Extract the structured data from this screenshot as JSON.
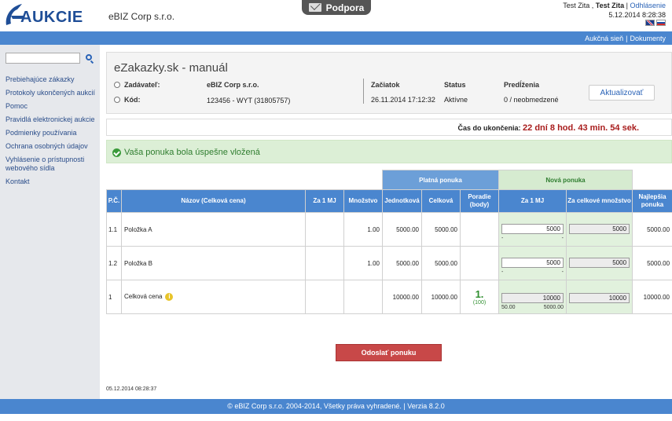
{
  "header": {
    "logo_text": "AUKCIE",
    "company": "eBIZ Corp s.r.o.",
    "support_label": "Podpora",
    "user_first": "Test Zita",
    "user_comma": " , ",
    "user_second": "Test Zita",
    "logout": "Odhlásenie",
    "datetime": "5.12.2014 8:28:38"
  },
  "topbar": {
    "link1": "Aukčná sieň",
    "sep": "|",
    "link2": "Dokumenty"
  },
  "sidebar": {
    "search_placeholder": "",
    "items": [
      "Prebiehajúce zákazky",
      "Protokoly ukončených aukcií",
      "Pomoc",
      "Pravidlá elektronickej aukcie",
      "Podmienky používania",
      "Ochrana osobných údajov",
      "Vyhlásenie o prístupnosti webového sídla",
      "Kontakt"
    ]
  },
  "panel": {
    "title": "eZakazky.sk - manuál",
    "zadavatel_label": "Zadávateľ:",
    "zadavatel_value": "eBIZ Corp s.r.o.",
    "kod_label": "Kód:",
    "kod_value": "123456 - WYT  (31805757)",
    "zaciatok_label": "Začiatok",
    "zaciatok_value": "26.11.2014 17:12:32",
    "status_label": "Status",
    "status_value": "Aktívne",
    "predlzenia_label": "Predĺženia",
    "predlzenia_value": "0 / neobmedzené",
    "refresh_label": "Aktualizovať"
  },
  "time": {
    "label": "Čas do ukončenia:",
    "value": "22 dní 8 hod. 43 min. 54 sek."
  },
  "success": {
    "message": "Vaša ponuka bola úspešne vložená"
  },
  "table": {
    "group_platna": "Platná ponuka",
    "group_nova": "Nová ponuka",
    "headers": {
      "pc": "P.Č.",
      "nazov": "Názov (Celková cena)",
      "za1mj": "Za 1 MJ",
      "mnozstvo": "Množstvo",
      "jednotkova": "Jednotková",
      "celkova": "Celková",
      "poradie": "Poradie (body)",
      "nova_za1mj": "Za 1 MJ",
      "nova_celkove": "Za celkové množstvo",
      "najlepsia": "Najlepšia ponuka"
    },
    "rows": [
      {
        "pc": "1.1",
        "nazov": "Položka A",
        "mnozstvo": "1.00",
        "jednotkova": "5000.00",
        "celkova": "5000.00",
        "nova_za1mj": "5000",
        "nova_celkove": "5000",
        "sub_left": "-",
        "sub_right": "-",
        "najlepsia": "5000.00"
      },
      {
        "pc": "1.2",
        "nazov": "Položka B",
        "mnozstvo": "1.00",
        "jednotkova": "5000.00",
        "celkova": "5000.00",
        "nova_za1mj": "5000",
        "nova_celkove": "5000",
        "sub_left": "-",
        "sub_right": "-",
        "najlepsia": "5000.00"
      }
    ],
    "total": {
      "pc": "1",
      "nazov": "Celková cena",
      "jednotkova": "10000.00",
      "celkova": "10000.00",
      "rank": "1.",
      "rank_points": "(100)",
      "nova_za1mj": "10000",
      "nova_celkove": "10000",
      "sub_left": "50.00",
      "sub_right": "5000.00",
      "najlepsia": "10000.00"
    }
  },
  "submit_label": "Odoslať ponuku",
  "page_timestamp": "05.12.2014 08:28:37",
  "footer": "© eBIZ Corp s.r.o. 2004-2014, Všetky práva vyhradené. | Verzia 8.2.0",
  "colors": {
    "brand_blue": "#4a86cf",
    "success_green": "#2f7d2f",
    "danger_red": "#c84848",
    "countdown_red": "#a81c1c"
  }
}
